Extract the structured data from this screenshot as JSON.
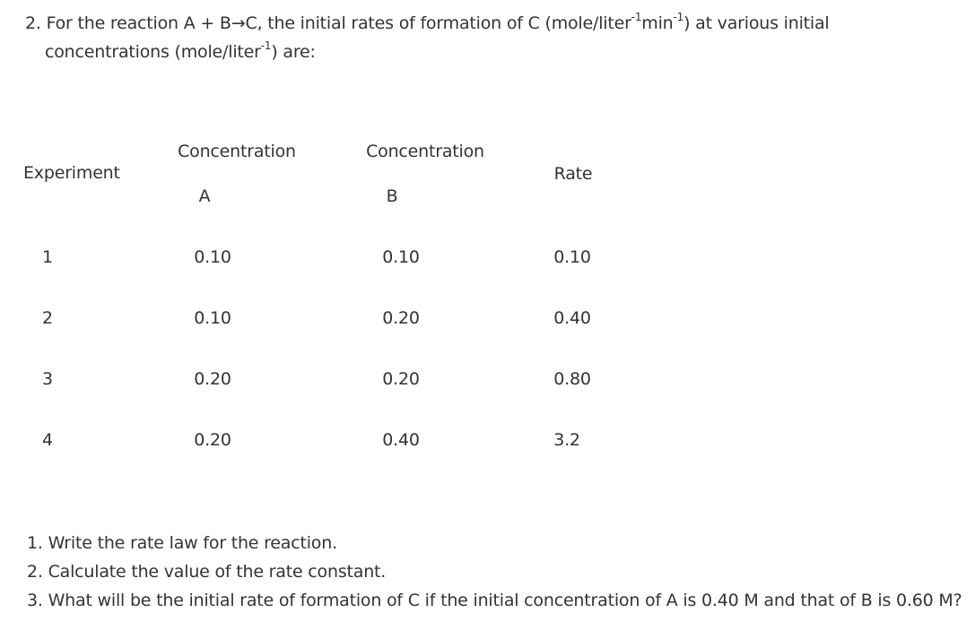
{
  "problem": {
    "number": "2.",
    "text_part1": "For the reaction A + B",
    "arrow": "→",
    "text_part2": "C, the initial rates of formation of C (mole/liter",
    "sup1": "-1",
    "text_part3": "min",
    "sup2": "-1",
    "text_part4": ") at various initial",
    "line2_part1": "concentrations (mole/liter",
    "line2_sup": "-1",
    "line2_part2": ") are:"
  },
  "table": {
    "headers": {
      "experiment": "Experiment",
      "conc_a_top": "Concentration",
      "conc_a_bottom": "A",
      "conc_b_top": "Concentration",
      "conc_b_bottom": "B",
      "rate": "Rate"
    },
    "rows": [
      {
        "experiment": "1",
        "a": "0.10",
        "b": "0.10",
        "rate": "0.10"
      },
      {
        "experiment": "2",
        "a": "0.10",
        "b": "0.20",
        "rate": "0.40"
      },
      {
        "experiment": "3",
        "a": "0.20",
        "b": "0.20",
        "rate": "0.80"
      },
      {
        "experiment": "4",
        "a": "0.20",
        "b": "0.40",
        "rate": "3.2"
      }
    ]
  },
  "questions": [
    "1. Write the rate law for the reaction.",
    "2. Calculate the value of the rate constant.",
    "3. What will be the initial rate of formation of C if the initial concentration of A is 0.40 M and that of B is 0.60 M?"
  ]
}
